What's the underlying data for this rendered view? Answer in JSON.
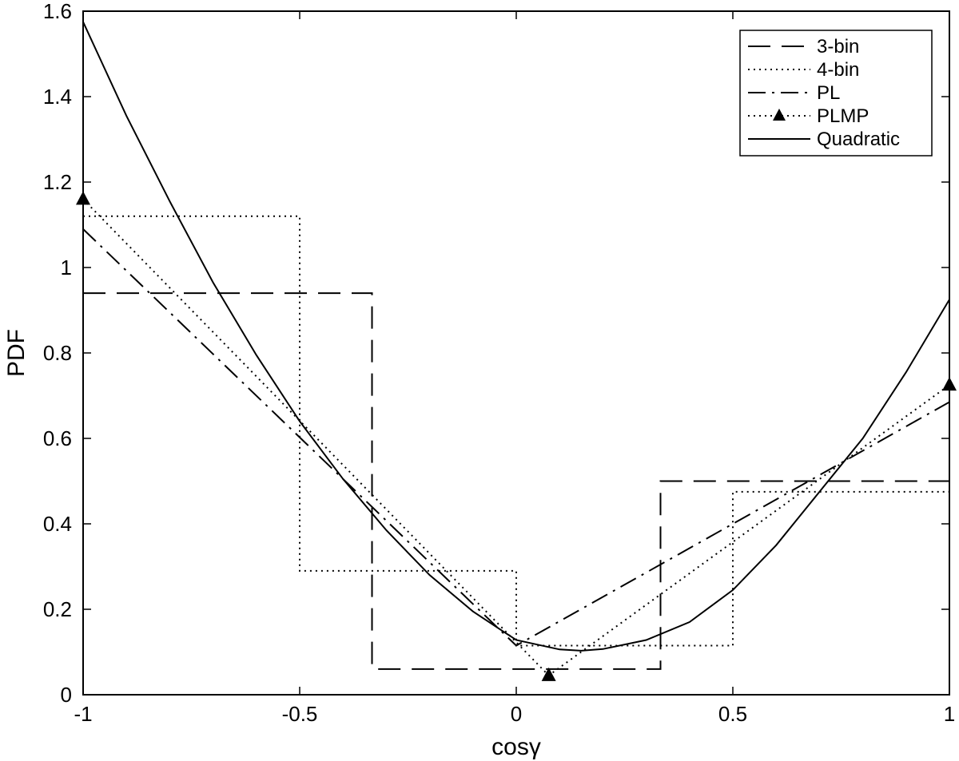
{
  "chart_data": {
    "type": "line",
    "xlabel": "cosγ",
    "ylabel": "PDF",
    "xlim": [
      -1,
      1
    ],
    "ylim": [
      0,
      1.6
    ],
    "xticks": [
      -1,
      -0.5,
      0,
      0.5,
      1
    ],
    "xtick_labels": [
      "-1",
      "-0.5",
      "0",
      "0.5",
      "1"
    ],
    "yticks": [
      0,
      0.2,
      0.4,
      0.6,
      0.8,
      1,
      1.2,
      1.4,
      1.6
    ],
    "ytick_labels": [
      "0",
      "0.2",
      "0.4",
      "0.6",
      "0.8",
      "1",
      "1.2",
      "1.4",
      "1.6"
    ],
    "grid": false,
    "legend_position": "top-right",
    "series": [
      {
        "name": "3-bin",
        "style": "dashed",
        "x": [
          -1,
          -0.333,
          -0.333,
          0.333,
          0.333,
          1
        ],
        "y": [
          0.94,
          0.94,
          0.06,
          0.06,
          0.5,
          0.5
        ]
      },
      {
        "name": "4-bin",
        "style": "dotted",
        "x": [
          -1,
          -0.5,
          -0.5,
          0,
          0,
          0.5,
          0.5,
          1
        ],
        "y": [
          1.12,
          1.12,
          0.29,
          0.29,
          0.115,
          0.115,
          0.475,
          0.475
        ]
      },
      {
        "name": "PL",
        "style": "dashdot",
        "x": [
          -1,
          0,
          1
        ],
        "y": [
          1.09,
          0.115,
          0.685
        ]
      },
      {
        "name": "PLMP",
        "style": "dotted-triangle",
        "x": [
          -1,
          0.075,
          1
        ],
        "y": [
          1.16,
          0.045,
          0.725
        ]
      },
      {
        "name": "Quadratic",
        "style": "solid",
        "x": [
          -1,
          -0.9,
          -0.8,
          -0.7,
          -0.6,
          -0.5,
          -0.4,
          -0.3,
          -0.2,
          -0.1,
          0,
          0.1,
          0.15,
          0.2,
          0.3,
          0.4,
          0.5,
          0.6,
          0.7,
          0.8,
          0.9,
          1
        ],
        "y": [
          1.575,
          1.355,
          1.155,
          0.965,
          0.795,
          0.64,
          0.505,
          0.385,
          0.28,
          0.195,
          0.128,
          0.106,
          0.103,
          0.107,
          0.128,
          0.17,
          0.245,
          0.35,
          0.475,
          0.6,
          0.755,
          0.925
        ]
      }
    ]
  }
}
